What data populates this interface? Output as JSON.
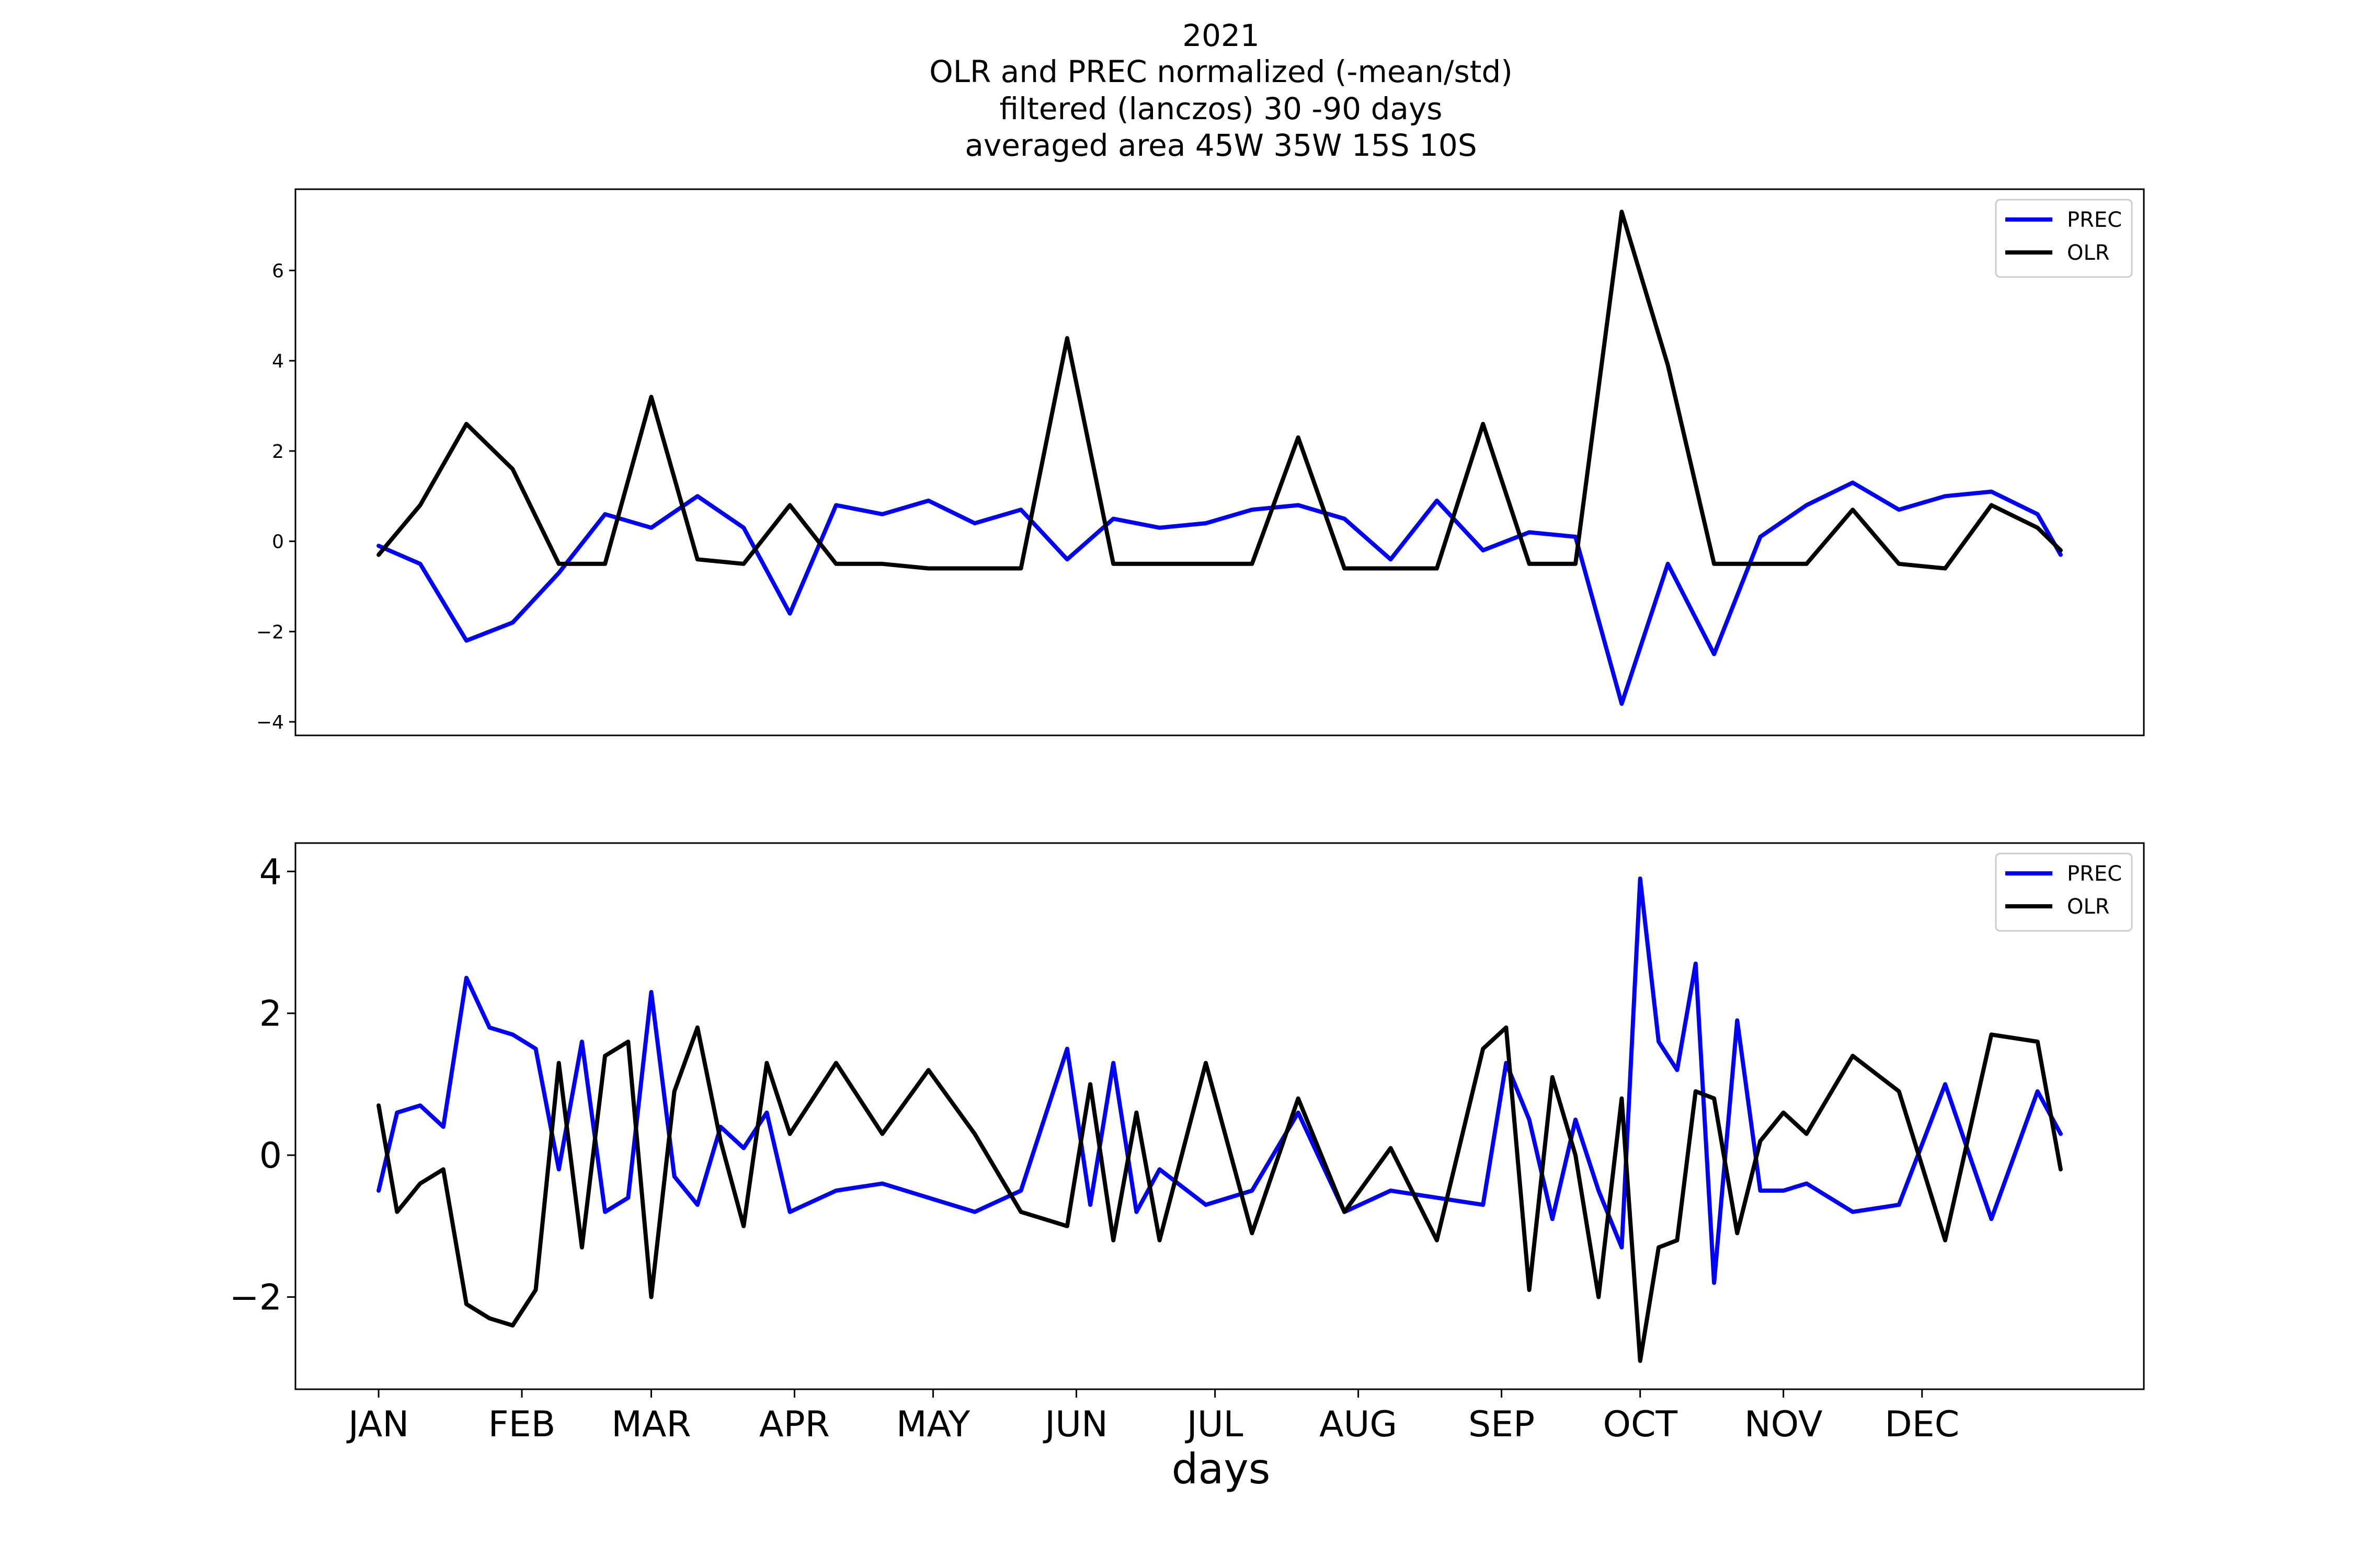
{
  "title_lines": [
    "2021",
    "OLR and PREC normalized (-mean/std)",
    "filtered (lanczos) 30 -90 days",
    "averaged area 45W 35W 15S 10S"
  ],
  "xlabel": "days",
  "months": [
    "JAN",
    "FEB",
    "MAR",
    "APR",
    "MAY",
    "JUN",
    "JUL",
    "AUG",
    "SEP",
    "OCT",
    "NOV",
    "DEC"
  ],
  "month_start_days": [
    1,
    32,
    60,
    91,
    121,
    152,
    182,
    213,
    244,
    274,
    305,
    335
  ],
  "colors": {
    "prec": "#0000ff",
    "olr": "#000000"
  },
  "chart_data": [
    {
      "type": "line",
      "title": "",
      "xlabel": "",
      "ylabel": "",
      "xlim": [
        -17,
        383
      ],
      "ylim": [
        -4.3,
        7.8
      ],
      "yticks": [
        -4,
        -2,
        0,
        2,
        4,
        6
      ],
      "ytick_labels": [
        "−4",
        "−2",
        "0",
        "2",
        "4",
        "6"
      ],
      "grid": false,
      "legend": "upper right",
      "x": [
        1,
        10,
        20,
        30,
        40,
        50,
        60,
        70,
        80,
        90,
        100,
        110,
        120,
        130,
        140,
        150,
        160,
        170,
        180,
        190,
        200,
        210,
        220,
        230,
        240,
        250,
        260,
        270,
        280,
        290,
        300,
        310,
        320,
        330,
        340,
        350,
        360,
        365
      ],
      "series": [
        {
          "name": "PREC",
          "color": "#0000ff",
          "values": [
            -0.1,
            -0.5,
            -2.2,
            -1.8,
            -0.7,
            0.6,
            0.3,
            1.0,
            0.3,
            -1.6,
            0.8,
            0.6,
            0.9,
            0.4,
            0.7,
            -0.4,
            0.5,
            0.3,
            0.4,
            0.7,
            0.8,
            0.5,
            -0.4,
            0.9,
            -0.2,
            0.2,
            0.1,
            -3.6,
            -0.5,
            -2.5,
            0.1,
            0.8,
            1.3,
            0.7,
            1.0,
            1.1,
            0.6,
            -0.3
          ]
        },
        {
          "name": "OLR",
          "color": "#000000",
          "values": [
            -0.3,
            0.8,
            2.6,
            1.6,
            -0.5,
            -0.5,
            3.2,
            -0.4,
            -0.5,
            0.8,
            -0.5,
            -0.5,
            -0.6,
            -0.6,
            -0.6,
            4.5,
            -0.5,
            -0.5,
            -0.5,
            -0.5,
            2.3,
            -0.6,
            -0.6,
            -0.6,
            2.6,
            -0.5,
            -0.5,
            7.3,
            3.9,
            -0.5,
            -0.5,
            -0.5,
            0.7,
            -0.5,
            -0.6,
            0.8,
            0.3,
            -0.2
          ]
        }
      ]
    },
    {
      "type": "line",
      "title": "",
      "xlabel": "days",
      "ylabel": "",
      "xlim": [
        -17,
        383
      ],
      "ylim": [
        -3.3,
        4.4
      ],
      "yticks": [
        -2,
        0,
        2,
        4
      ],
      "ytick_labels": [
        "−2",
        "0",
        "2",
        "4"
      ],
      "grid": false,
      "legend": "upper right",
      "x": [
        1,
        5,
        10,
        15,
        20,
        25,
        30,
        35,
        40,
        45,
        50,
        55,
        60,
        65,
        70,
        75,
        80,
        85,
        90,
        100,
        110,
        120,
        130,
        140,
        150,
        155,
        160,
        165,
        170,
        180,
        190,
        200,
        210,
        220,
        230,
        240,
        245,
        250,
        255,
        260,
        265,
        270,
        274,
        278,
        282,
        286,
        290,
        295,
        300,
        305,
        310,
        320,
        330,
        340,
        350,
        360,
        365
      ],
      "series": [
        {
          "name": "PREC",
          "color": "#0000ff",
          "values": [
            -0.5,
            0.6,
            0.7,
            0.4,
            2.5,
            1.8,
            1.7,
            1.5,
            -0.2,
            1.6,
            -0.8,
            -0.6,
            2.3,
            -0.3,
            -0.7,
            0.4,
            0.1,
            0.6,
            -0.8,
            -0.5,
            -0.4,
            -0.6,
            -0.8,
            -0.5,
            1.5,
            -0.7,
            1.3,
            -0.8,
            -0.2,
            -0.7,
            -0.5,
            0.6,
            -0.8,
            -0.5,
            -0.6,
            -0.7,
            1.3,
            0.5,
            -0.9,
            0.5,
            -0.5,
            -1.3,
            3.9,
            1.6,
            1.2,
            2.7,
            -1.8,
            1.9,
            -0.5,
            -0.5,
            -0.4,
            -0.8,
            -0.7,
            1.0,
            -0.9,
            0.9,
            0.3
          ]
        },
        {
          "name": "OLR",
          "color": "#000000",
          "values": [
            0.7,
            -0.8,
            -0.4,
            -0.2,
            -2.1,
            -2.3,
            -2.4,
            -1.9,
            1.3,
            -1.3,
            1.4,
            1.6,
            -2.0,
            0.9,
            1.8,
            0.2,
            -1.0,
            1.3,
            0.3,
            1.3,
            0.3,
            1.2,
            0.3,
            -0.8,
            -1.0,
            1.0,
            -1.2,
            0.6,
            -1.2,
            1.3,
            -1.1,
            0.8,
            -0.8,
            0.1,
            -1.2,
            1.5,
            1.8,
            -1.9,
            1.1,
            0.0,
            -2.0,
            0.8,
            -2.9,
            -1.3,
            -1.2,
            0.9,
            0.8,
            -1.1,
            0.2,
            0.6,
            0.3,
            1.4,
            0.9,
            -1.2,
            1.7,
            1.6,
            -0.2
          ]
        }
      ]
    }
  ]
}
